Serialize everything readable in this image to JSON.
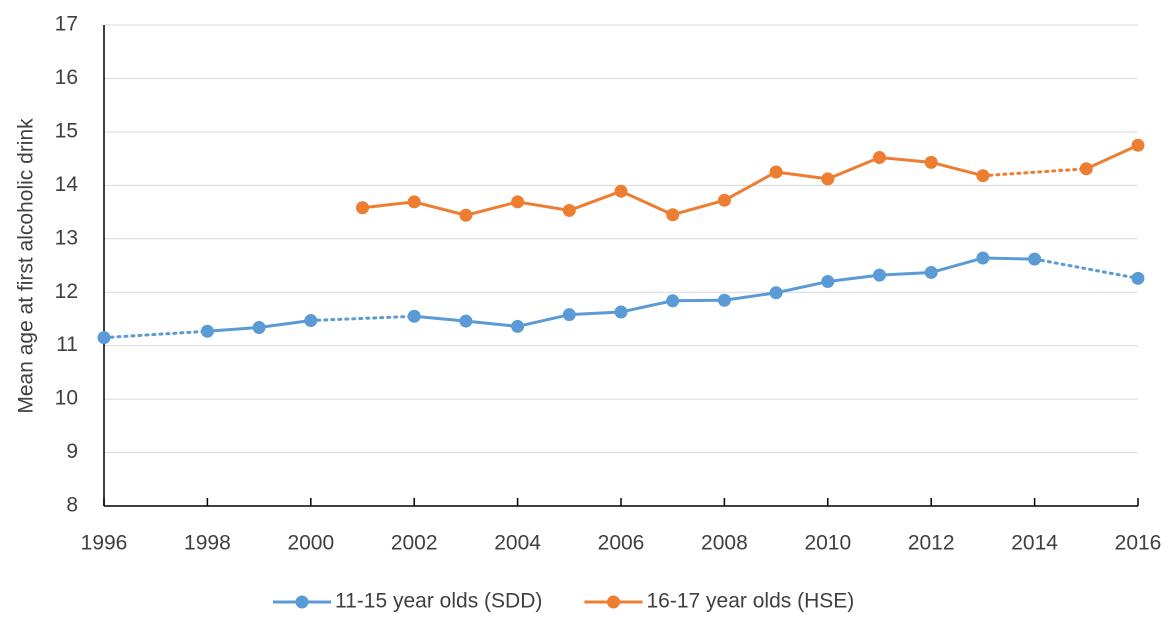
{
  "chart_data": {
    "type": "line",
    "y_label": "Mean age at first alcoholic drink",
    "series": [
      {
        "name": "11-15 year olds (SDD)",
        "color": "#5b9bd5",
        "x": [
          1996,
          1998,
          1999,
          2000,
          2002,
          2003,
          2004,
          2005,
          2006,
          2007,
          2008,
          2009,
          2010,
          2011,
          2012,
          2013,
          2014,
          2016
        ],
        "values": [
          11.15,
          11.27,
          11.34,
          11.47,
          11.55,
          11.46,
          11.36,
          11.58,
          11.63,
          11.84,
          11.85,
          11.99,
          12.2,
          12.32,
          12.37,
          12.64,
          12.62,
          12.26
        ]
      },
      {
        "name": "16-17 year olds (HSE)",
        "color": "#ed7d31",
        "x": [
          2001,
          2002,
          2003,
          2004,
          2005,
          2006,
          2007,
          2008,
          2009,
          2010,
          2011,
          2012,
          2013,
          2015,
          2016
        ],
        "values": [
          13.58,
          13.69,
          13.44,
          13.69,
          13.53,
          13.89,
          13.45,
          13.72,
          14.25,
          14.12,
          14.52,
          14.43,
          14.18,
          14.31,
          14.75
        ]
      }
    ],
    "xlim": [
      1996,
      2016
    ],
    "xticks": [
      1996,
      1998,
      2000,
      2002,
      2004,
      2006,
      2008,
      2010,
      2012,
      2014,
      2016
    ],
    "ylim": [
      8,
      17
    ],
    "yticks": [
      8,
      9,
      10,
      11,
      12,
      13,
      14,
      15,
      16,
      17
    ],
    "grid": true,
    "legend": "bottom"
  }
}
